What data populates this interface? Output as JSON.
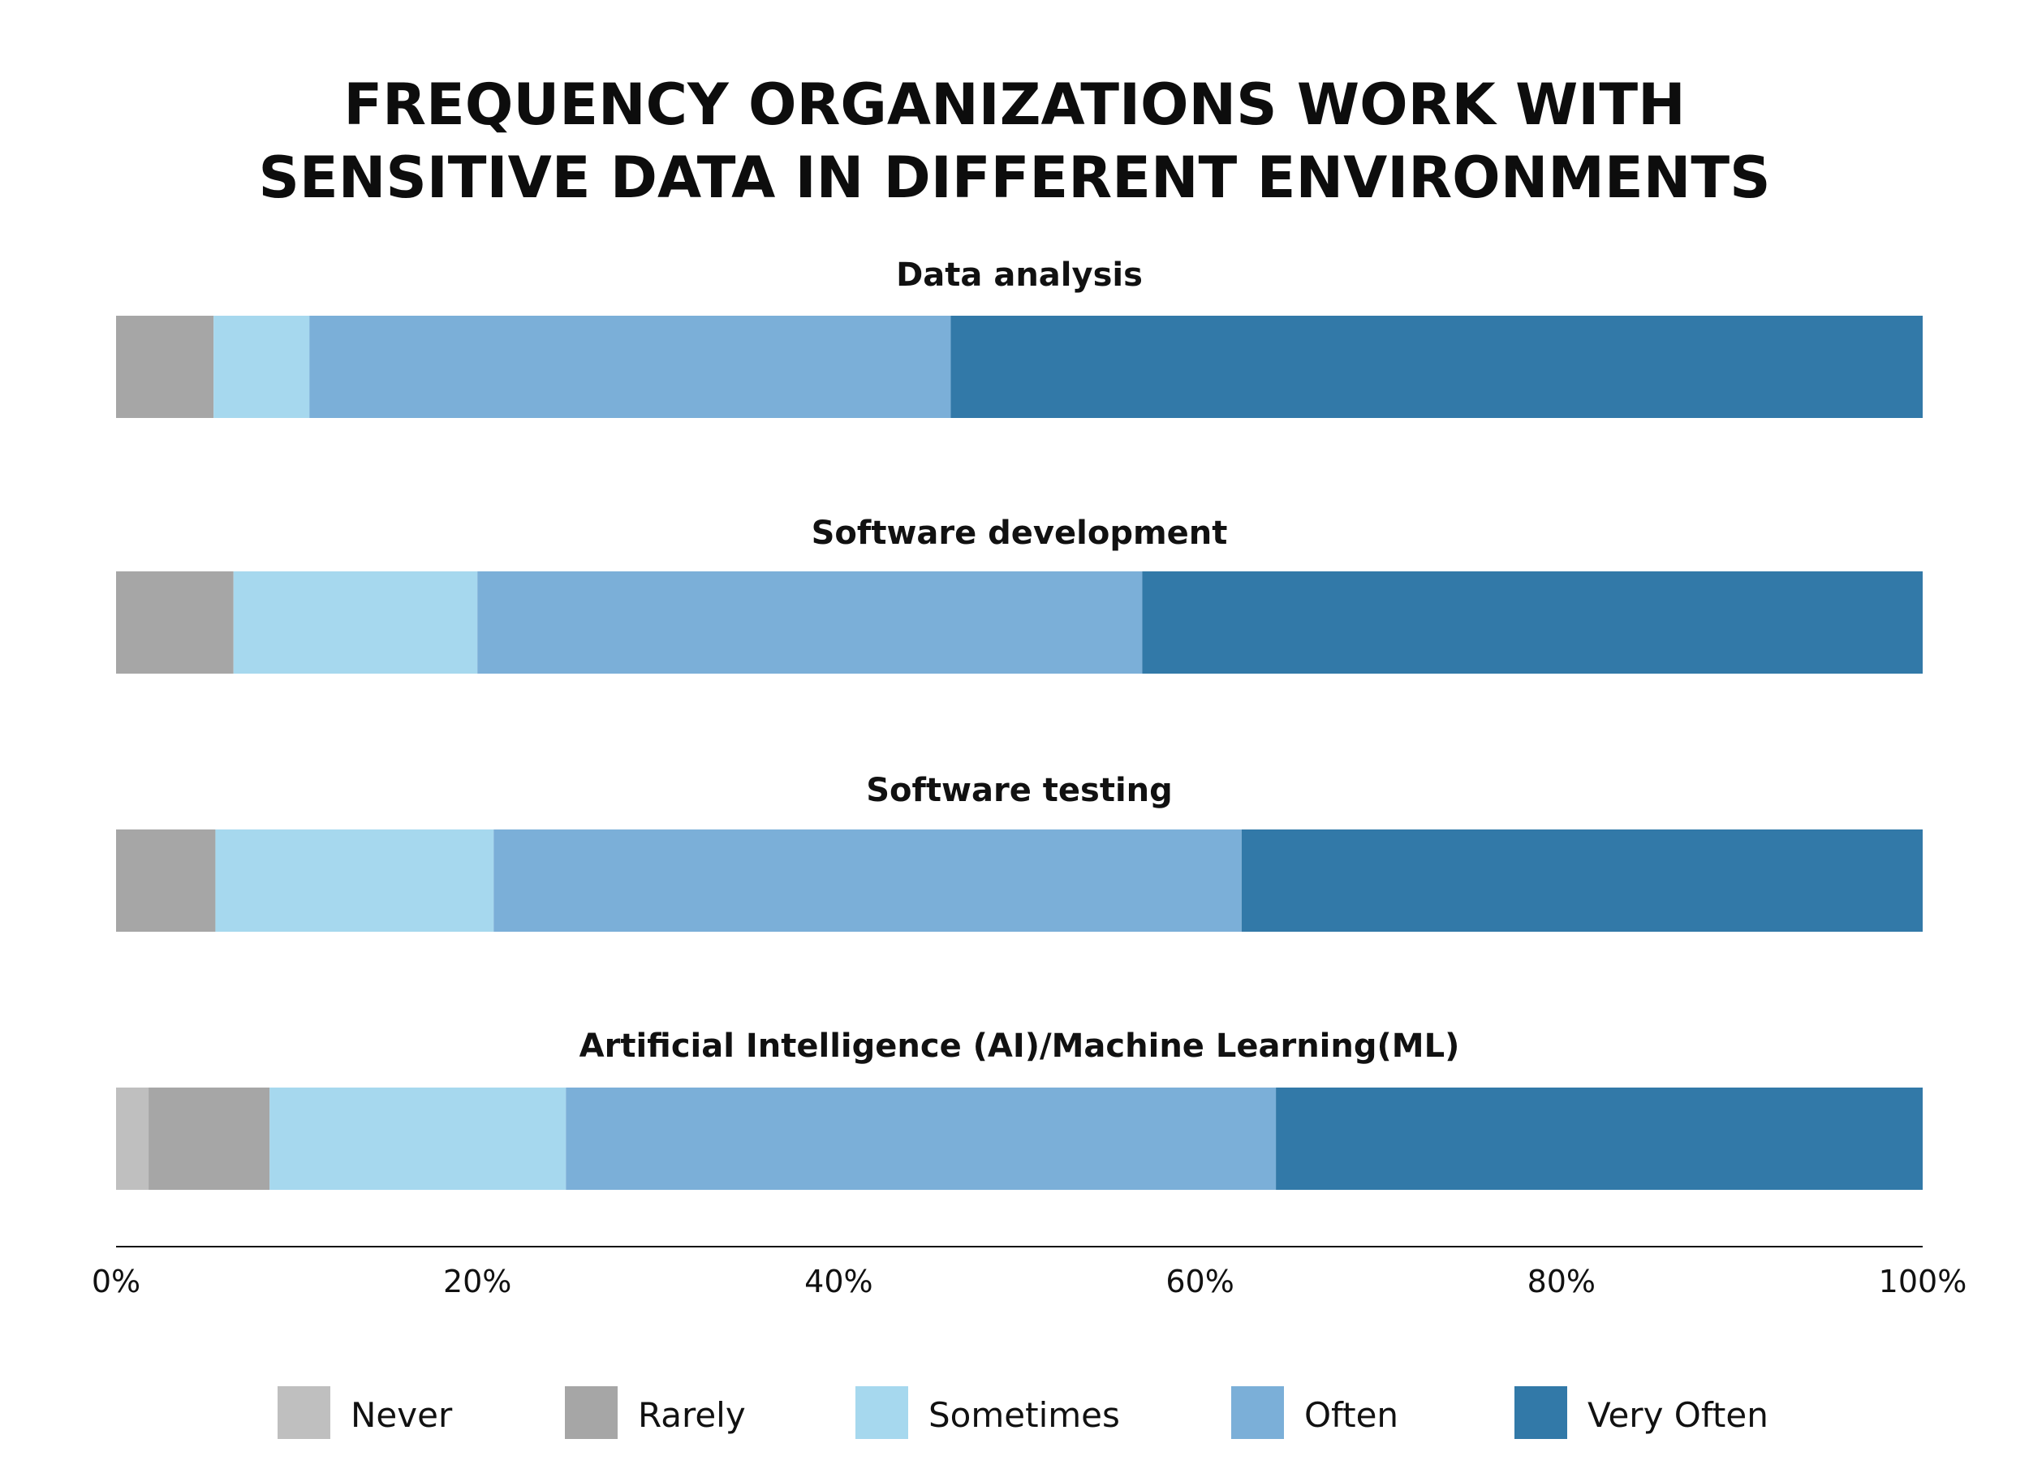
{
  "chart_data": {
    "type": "bar",
    "orientation": "horizontal",
    "stacked": true,
    "title_lines": [
      "FREQUENCY ORGANIZATIONS WORK WITH",
      "SENSITIVE DATA IN DIFFERENT ENVIRONMENTS"
    ],
    "categories": [
      "Data analysis",
      "Software development",
      "Software testing",
      "Artificial Intelligence (AI)/Machine Learning(ML)"
    ],
    "series": [
      {
        "name": "Never",
        "color": "#bfbfbf",
        "values": [
          0,
          0,
          0,
          1.8
        ]
      },
      {
        "name": "Rarely",
        "color": "#a6a6a6",
        "values": [
          5.4,
          6.5,
          5.5,
          6.7
        ]
      },
      {
        "name": "Sometimes",
        "color": "#a6d8ee",
        "values": [
          5.3,
          13.5,
          15.4,
          16.4
        ]
      },
      {
        "name": "Often",
        "color": "#7bafd8",
        "values": [
          35.5,
          36.8,
          41.4,
          39.3
        ]
      },
      {
        "name": "Very Often",
        "color": "#3279a8",
        "values": [
          53.8,
          43.2,
          37.7,
          35.8
        ]
      }
    ],
    "xlim": [
      0,
      100
    ],
    "x_ticks": [
      "0%",
      "20%",
      "40%",
      "60%",
      "80%",
      "100%"
    ],
    "grid": false,
    "legend_position": "bottom"
  }
}
